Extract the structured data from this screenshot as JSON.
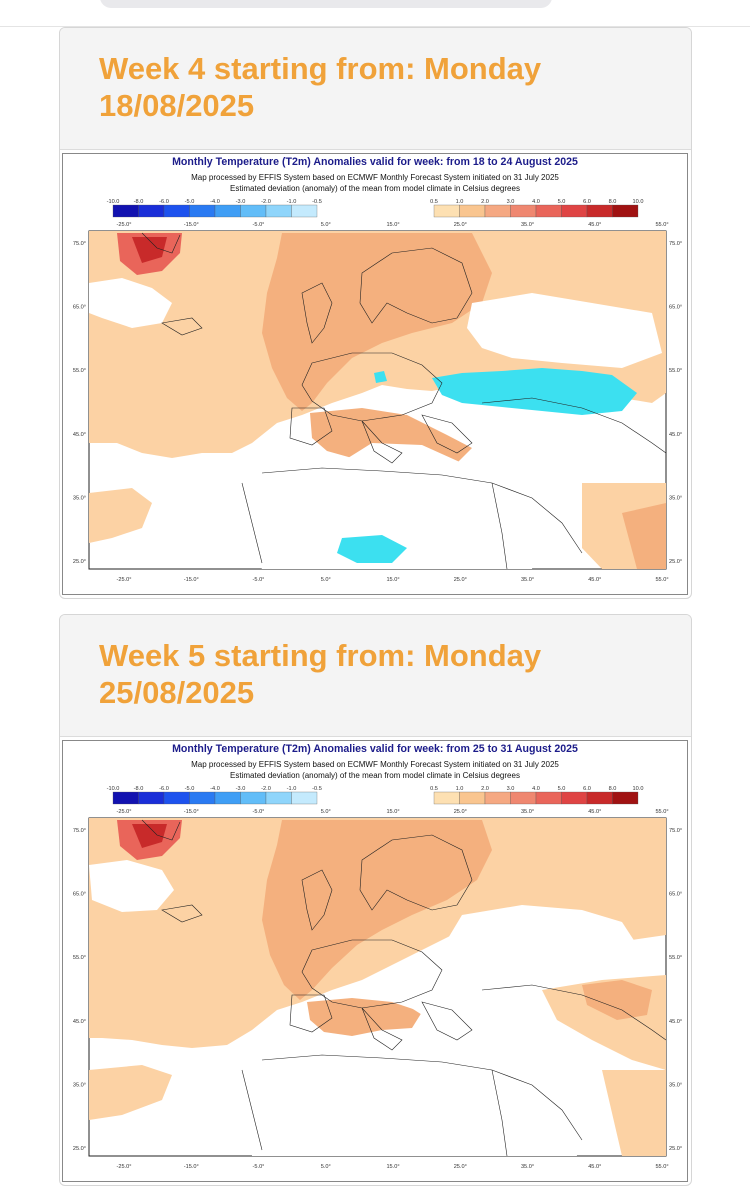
{
  "sections": [
    {
      "heading": "Week 4 starting from: Monday 18/08/2025",
      "map": {
        "title": "Monthly Temperature (T2m) Anomalies valid for week: from 18 to 24 August 2025",
        "subtitle1": "Map processed by EFFIS System based on ECMWF Monthly Forecast System initiated on 31 July 2025",
        "subtitle2": "Estimated deviation (anomaly) of the mean from model climate in Celsius degrees"
      }
    },
    {
      "heading": "Week 5 starting from: Monday 25/08/2025",
      "map": {
        "title": "Monthly Temperature (T2m) Anomalies valid for week: from 25 to 31 August 2025",
        "subtitle1": "Map processed by EFFIS System based on ECMWF Monthly Forecast System initiated on 31 July 2025",
        "subtitle2": "Estimated deviation (anomaly) of the mean from model climate in Celsius degrees"
      }
    }
  ],
  "legend": {
    "cold_labels": [
      "-10.0",
      "-8.0",
      "-6.0",
      "-5.0",
      "-4.0",
      "-3.0",
      "-2.0",
      "-1.0",
      "-0.5"
    ],
    "cold_colors": [
      "#1212b0",
      "#1a2ed8",
      "#1d52ee",
      "#2a7af2",
      "#3f9ef5",
      "#62bdf8",
      "#8fd5fb",
      "#c4eafd"
    ],
    "warm_labels": [
      "0.5",
      "1.0",
      "2.0",
      "3.0",
      "4.0",
      "5.0",
      "6.0",
      "8.0",
      "10.0"
    ],
    "warm_colors": [
      "#fde0b2",
      "#f9c58f",
      "#f5a882",
      "#ef8770",
      "#e9655a",
      "#df4444",
      "#c82a2a",
      "#a01212"
    ]
  },
  "axes": {
    "lon_labels": [
      "-25.0°",
      "-15.0°",
      "-5.0°",
      "5.0°",
      "15.0°",
      "25.0°",
      "35.0°",
      "45.0°",
      "55.0°"
    ],
    "lat_labels": [
      "75.0°",
      "65.0°",
      "55.0°",
      "45.0°",
      "35.0°",
      "25.0°"
    ]
  },
  "colors": {
    "accent": "#f0a23a",
    "map_title": "#1c1c8a",
    "anomaly_light": "#fcd2a4",
    "anomaly_mid": "#f4b07e",
    "anomaly_cold": "#3ce0f0"
  }
}
